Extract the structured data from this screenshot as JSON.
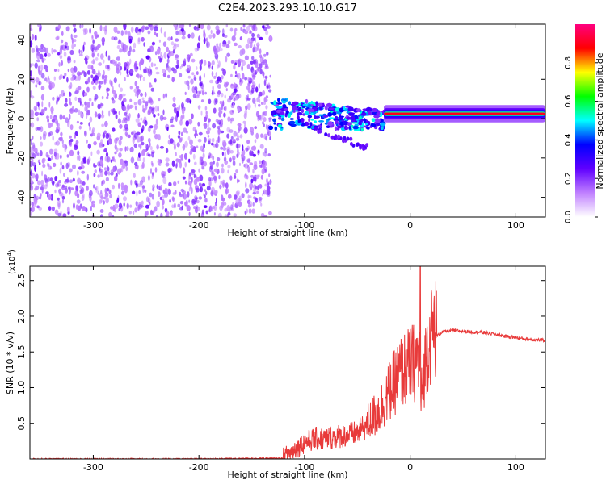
{
  "title": "C2E4.2023.293.10.10.G17",
  "chart_data": [
    {
      "type": "heatmap",
      "xlabel": "Height of straight line (km)",
      "ylabel": "Frequency (Hz)",
      "xlim": [
        -360,
        128
      ],
      "ylim": [
        -50,
        48
      ],
      "x_ticks": [
        -300,
        -200,
        -100,
        0,
        100
      ],
      "y_ticks": [
        -40,
        -20,
        0,
        20,
        40
      ],
      "colorbar": {
        "label": "Normalized spectral amplitude",
        "range": [
          0.0,
          1.0
        ],
        "ticks": [
          "0.0",
          "0.2",
          "0.4",
          "0.6",
          "0.8"
        ],
        "colors": [
          "#ffffff",
          "#c080ff",
          "#6000ff",
          "#0000ff",
          "#00ffff",
          "#00ff00",
          "#ffff00",
          "#ff0000",
          "#ff0080"
        ]
      },
      "regions": [
        {
          "x": [
            -360,
            -132
          ],
          "freq_range": [
            -50,
            48
          ],
          "amplitude": 0.05
        },
        {
          "x": [
            -132,
            -25
          ],
          "freq_center": 3,
          "freq_halfwidth": 8,
          "amplitude": 0.45
        },
        {
          "x": [
            -25,
            128
          ],
          "freq_center": 2.5,
          "freq_halfwidth": 2,
          "amplitude": 0.9
        }
      ]
    },
    {
      "type": "line",
      "xlabel": "Height of straight line (km)",
      "ylabel": "SNR (10 * v/v)",
      "y_multiplier": "(x10",
      "y_multiplier_exp": "4",
      "y_multiplier_close": ")",
      "xlim": [
        -360,
        128
      ],
      "ylim": [
        0,
        2.7
      ],
      "x_ticks": [
        -300,
        -200,
        -100,
        0,
        100
      ],
      "y_ticks": [
        "0.5",
        "1.0",
        "1.5",
        "2.0",
        "2.5"
      ],
      "series": [
        {
          "color": "#e83a3a",
          "x": [
            -360,
            -200,
            -120,
            -110,
            -100,
            -90,
            -80,
            -70,
            -60,
            -50,
            -40,
            -30,
            -20,
            -10,
            0,
            9,
            10,
            15,
            20,
            25,
            30,
            40,
            50,
            60,
            70,
            80,
            90,
            100,
            110,
            128
          ],
          "y": [
            0.0,
            0.0,
            0.01,
            0.1,
            0.2,
            0.25,
            0.25,
            0.28,
            0.3,
            0.33,
            0.45,
            0.6,
            0.85,
            1.1,
            1.2,
            1.3,
            0.7,
            1.35,
            1.6,
            1.72,
            1.78,
            1.8,
            1.79,
            1.78,
            1.77,
            1.75,
            1.72,
            1.7,
            1.68,
            1.66
          ]
        }
      ]
    }
  ]
}
